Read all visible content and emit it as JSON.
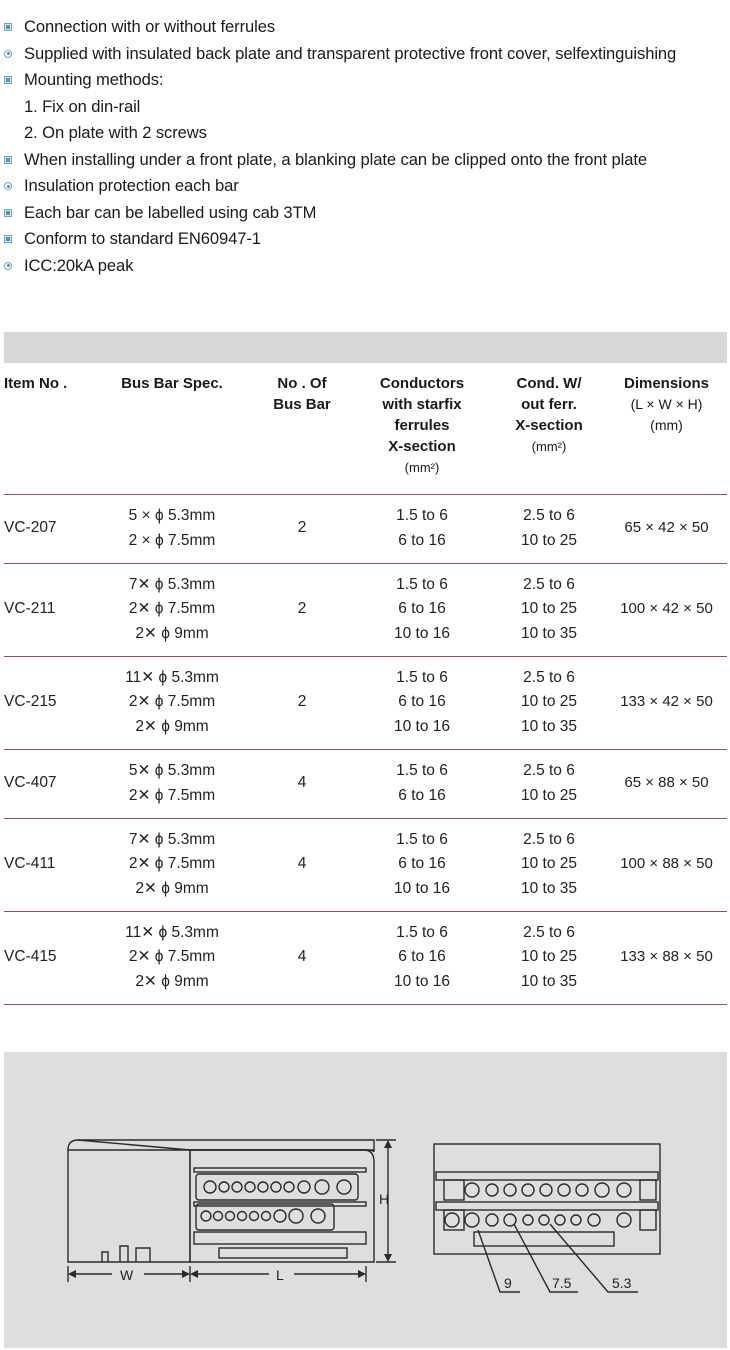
{
  "features": [
    {
      "text": "Connection with or without ferrules",
      "bullet": "square"
    },
    {
      "text": "Supplied with insulated back plate and transparent protective front cover, selfextinguishing",
      "bullet": "circle"
    },
    {
      "text": "Mounting methods:",
      "bullet": "square"
    },
    {
      "text": "1. Fix on din-rail",
      "bullet": "none"
    },
    {
      "text": "2. On plate with 2 screws",
      "bullet": "none"
    },
    {
      "text": "When installing under a front plate, a blanking plate can be clipped onto the front plate",
      "bullet": "square"
    },
    {
      "text": "Insulation protection each bar",
      "bullet": "circle"
    },
    {
      "text": "Each bar can be labelled using cab 3TM",
      "bullet": "square"
    },
    {
      "text": "Conform to standard EN60947-1",
      "bullet": "square"
    },
    {
      "text": "ICC:20kA peak",
      "bullet": "circle"
    }
  ],
  "table": {
    "headers": {
      "item": "Item No .",
      "spec": "Bus Bar Spec.",
      "count_l1": "No . Of",
      "count_l2": "Bus Bar",
      "cond_l1": "Conductors",
      "cond_l2": "with starfix",
      "cond_l3": "ferrules",
      "cond_l4": "X-section",
      "cond_unit": "(mm²)",
      "wo_l1": "Cond. W/",
      "wo_l2": "out ferr.",
      "wo_l3": "X-section",
      "wo_unit": "(mm²)",
      "dim_l1": "Dimensions",
      "dim_l2": "(L × W × H)",
      "dim_l3": "(mm)"
    },
    "rows": [
      {
        "item": "VC-207",
        "spec": [
          "5 × ϕ 5.3mm",
          "2 × ϕ 7.5mm"
        ],
        "count": "2",
        "cond": [
          "1.5  to  6",
          "6  to  16"
        ],
        "wo": [
          "2.5  to  6",
          "10  to 25"
        ],
        "dim": "65 × 42 × 50"
      },
      {
        "item": "VC-211",
        "spec": [
          "7✕ ϕ 5.3mm",
          "2✕ ϕ 7.5mm",
          "2✕ ϕ 9mm"
        ],
        "count": "2",
        "cond": [
          "1.5  to  6",
          "6  to  16",
          "10  to 16"
        ],
        "wo": [
          "2.5  to  6",
          "10  to 25",
          "10  to 35"
        ],
        "dim": "100 × 42 × 50"
      },
      {
        "item": "VC-215",
        "spec": [
          "11✕ ϕ 5.3mm",
          "2✕ ϕ 7.5mm",
          "2✕ ϕ 9mm"
        ],
        "count": "2",
        "cond": [
          "1.5  to  6",
          "6  to  16",
          "10  to 16"
        ],
        "wo": [
          "2.5  to  6",
          "10  to 25",
          "10  to 35"
        ],
        "dim": "133 × 42 × 50"
      },
      {
        "item": "VC-407",
        "spec": [
          "5✕ ϕ 5.3mm",
          "2✕ ϕ 7.5mm"
        ],
        "count": "4",
        "cond": [
          "1.5  to  6",
          "6  to  16"
        ],
        "wo": [
          "2.5  to  6",
          "10  to 25"
        ],
        "dim": "65 × 88 × 50"
      },
      {
        "item": "VC-411",
        "spec": [
          "7✕ ϕ 5.3mm",
          "2✕ ϕ 7.5mm",
          "2✕ ϕ 9mm"
        ],
        "count": "4",
        "cond": [
          "1.5  to  6",
          "6  to  16",
          "10  to 16"
        ],
        "wo": [
          "2.5  to  6",
          "10  to 25",
          "10  to 35"
        ],
        "dim": "100 × 88 × 50"
      },
      {
        "item": "VC-415",
        "spec": [
          "11✕ ϕ 5.3mm",
          "2✕ ϕ 7.5mm",
          "2✕ ϕ 9mm"
        ],
        "count": "4",
        "cond": [
          "1.5  to  6",
          "6  to  16",
          "10  to 16"
        ],
        "wo": [
          "2.5  to  6",
          "10  to 25",
          "10  to 35"
        ],
        "dim": "133 × 88 × 50"
      }
    ]
  },
  "diagram": {
    "label_h": "H",
    "label_w": "W",
    "label_l": "L",
    "label_9": "9",
    "label_75": "7.5",
    "label_53": "5.3",
    "line_color": "#2a2a2a",
    "background": "#dedede"
  }
}
